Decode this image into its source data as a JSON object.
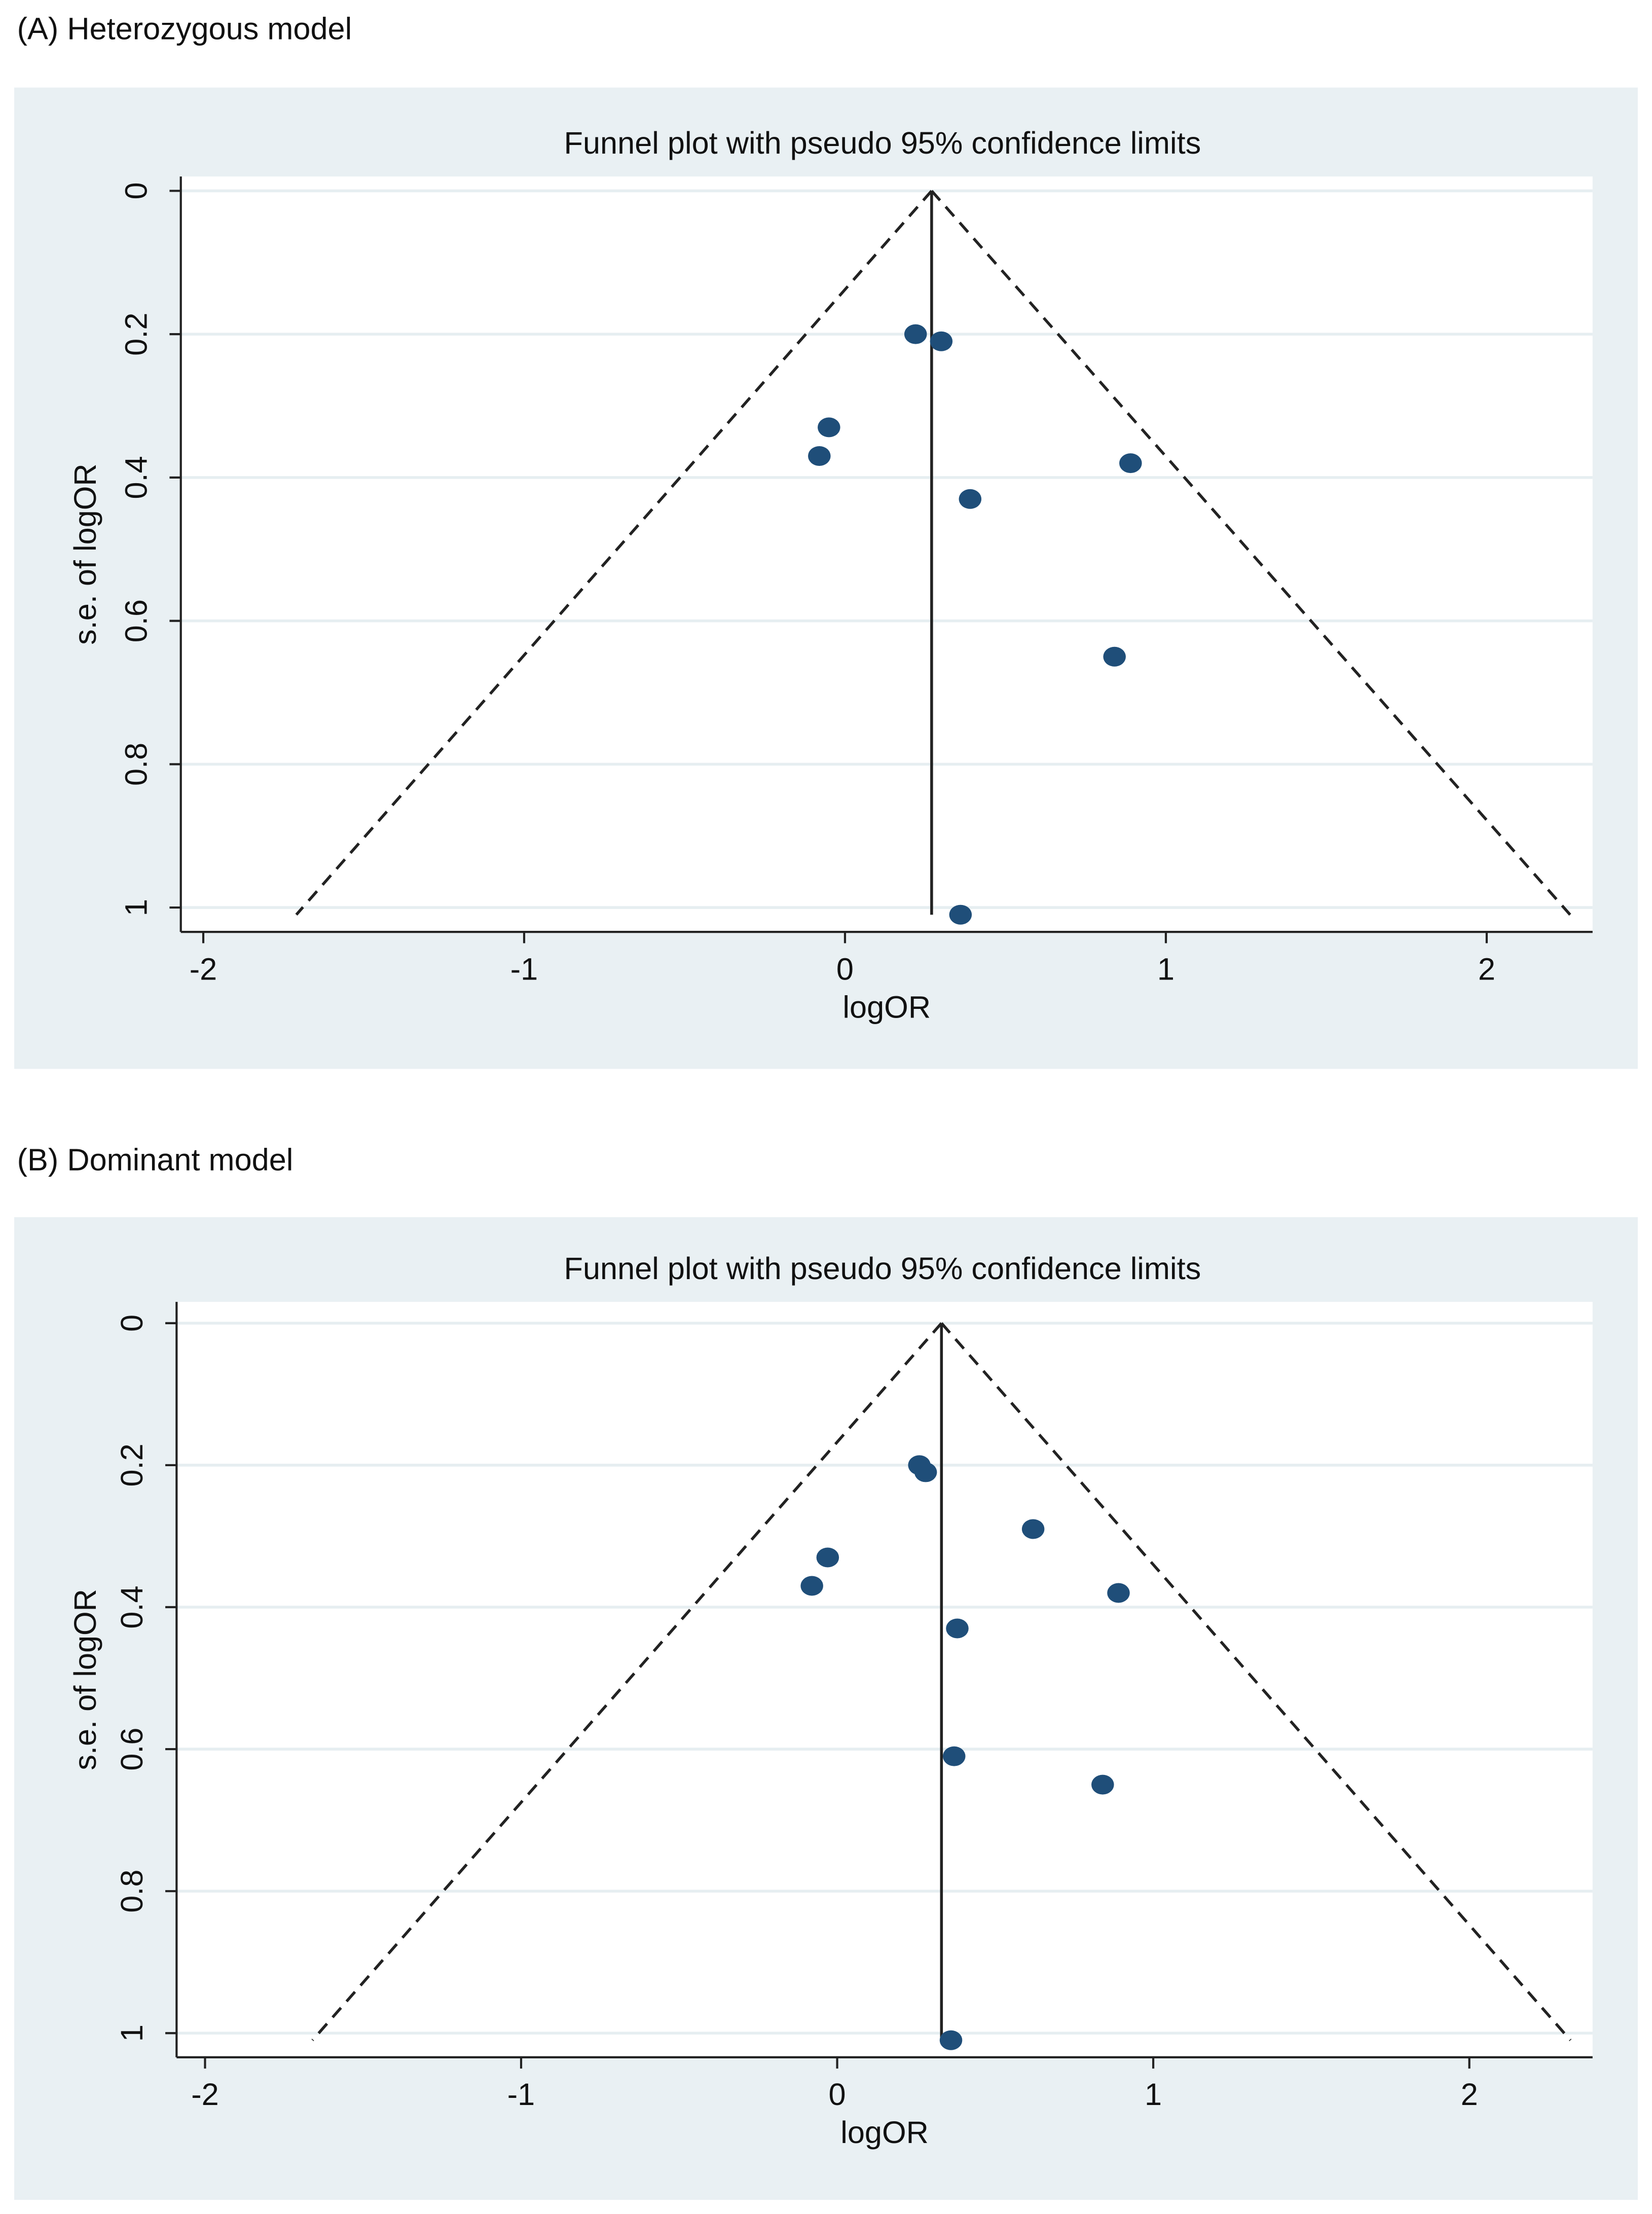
{
  "chart_data": [
    {
      "type": "scatter",
      "panel_label": "(A) Heterozygous model",
      "title": "Funnel plot with pseudo 95% confidence limits",
      "x_label": "logOR",
      "y_label": "s.e. of logOR",
      "x": [
        0.22,
        0.3,
        -0.05,
        -0.08,
        0.89,
        0.39,
        0.84,
        0.36
      ],
      "values": [
        0.2,
        0.21,
        0.33,
        0.37,
        0.38,
        0.43,
        0.65,
        1.01
      ],
      "color": "#1f4e79",
      "pooled_logOR": 0.27,
      "funnel": {
        "apex": [
          0.27,
          0
        ],
        "left": [
          -1.71,
          1.01
        ],
        "right": [
          2.26,
          1.01
        ]
      },
      "xlim": [
        -2.07,
        2.33
      ],
      "ylim": [
        -0.02,
        1.034
      ],
      "y_inverted": true,
      "xticks": [
        -2,
        -1,
        0,
        1,
        2
      ],
      "yticks": [
        0,
        0.2,
        0.4,
        0.6,
        0.8,
        1
      ],
      "grid": true
    },
    {
      "type": "scatter",
      "panel_label": "(B) Dominant model",
      "title": "Funnel plot with pseudo 95% confidence limits",
      "x_label": "logOR",
      "y_label": "s.e. of logOR",
      "x": [
        0.26,
        0.28,
        0.62,
        -0.03,
        -0.08,
        0.89,
        0.38,
        0.37,
        0.84,
        0.36
      ],
      "values": [
        0.2,
        0.21,
        0.29,
        0.33,
        0.37,
        0.38,
        0.43,
        0.61,
        0.65,
        1.01
      ],
      "color": "#1f4e79",
      "pooled_logOR": 0.33,
      "funnel": {
        "apex": [
          0.33,
          0
        ],
        "left": [
          -1.66,
          1.01
        ],
        "right": [
          2.32,
          1.01
        ]
      },
      "xlim": [
        -2.09,
        2.39
      ],
      "ylim": [
        -0.03,
        1.034
      ],
      "y_inverted": true,
      "xticks": [
        -2,
        -1,
        0,
        1,
        2
      ],
      "yticks": [
        0,
        0.2,
        0.4,
        0.6,
        0.8,
        1
      ],
      "grid": true
    }
  ]
}
